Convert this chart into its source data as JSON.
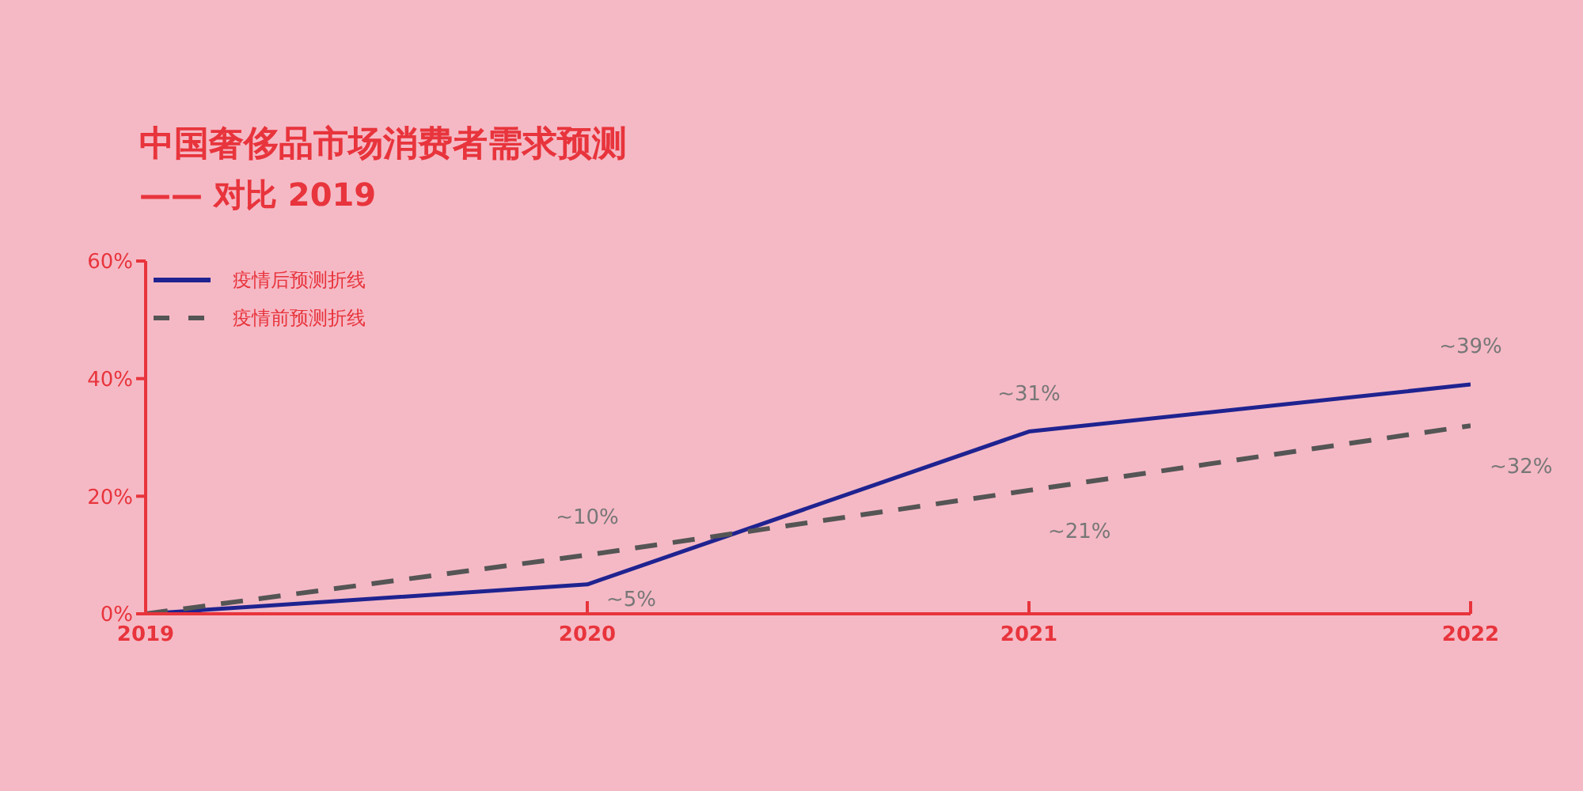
{
  "chart_data": {
    "type": "line",
    "title": "中国奢侈品市场消费者需求预测",
    "subtitle": "—— 对比 2019",
    "categories": [
      "2019",
      "2020",
      "2021",
      "2022"
    ],
    "series": [
      {
        "name": "疫情后预测折线",
        "color": "#1f2390",
        "line_style": "solid",
        "values": [
          0,
          5,
          31,
          39
        ],
        "value_labels": [
          null,
          "~5%",
          "~31%",
          "~39%"
        ]
      },
      {
        "name": "疫情前预测折线",
        "color": "#555555",
        "line_style": "dashed",
        "values": [
          0,
          10,
          21,
          32
        ],
        "value_labels": [
          null,
          "~10%",
          "~21%",
          "~32%"
        ]
      }
    ],
    "ylim": [
      0,
      60
    ],
    "yticks": [
      {
        "value": 0,
        "label": "0%"
      },
      {
        "value": 20,
        "label": "20%"
      },
      {
        "value": 40,
        "label": "40%"
      },
      {
        "value": 60,
        "label": "60%"
      }
    ],
    "grid": false,
    "legend": "top left",
    "marker": "none"
  }
}
